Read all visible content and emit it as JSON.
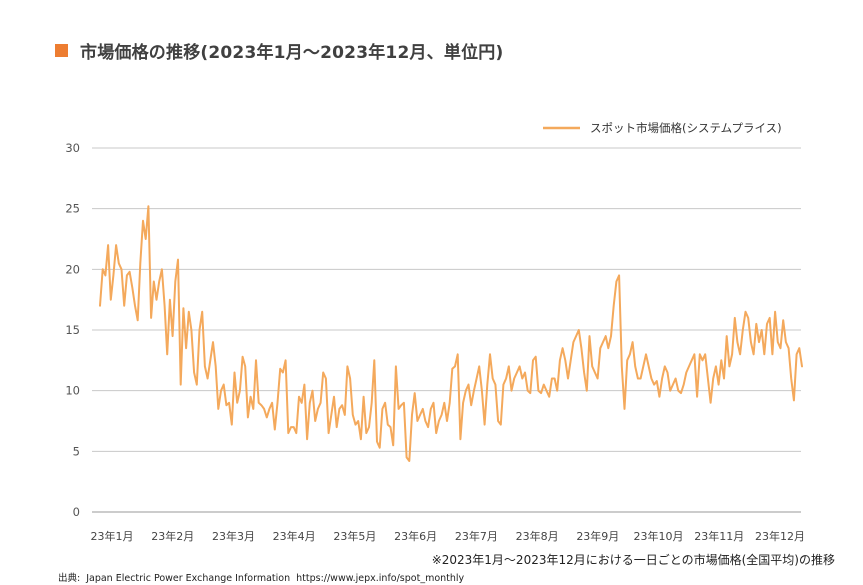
{
  "title": "市場価格の推移(2023年1月～2023年12月、単位円)",
  "note": "※2023年1月～2023年12月における一日ごとの市場価格(全国平均)の推移",
  "source": {
    "label": "出典:",
    "org": "Japan Electric Power Exchange Information",
    "url": "https://www.jepx.info/spot_monthly"
  },
  "chart_data": {
    "type": "line",
    "title": "市場価格の推移(2023年1月～2023年12月、単位円)",
    "xlabel": "",
    "ylabel": "",
    "ylim": [
      0,
      30
    ],
    "yticks": [
      0,
      5,
      10,
      15,
      20,
      25,
      30
    ],
    "grid": true,
    "legend_position": "top-right",
    "color": "#f4a95c",
    "x_tick_labels": [
      "23年1月",
      "23年2月",
      "23年3月",
      "23年4月",
      "23年5月",
      "23年6月",
      "23年7月",
      "23年8月",
      "23年9月",
      "23年10月",
      "23年11月",
      "23年12月"
    ],
    "series": [
      {
        "name": "スポット市場価格(システムプライス)",
        "values": [
          17.0,
          20.0,
          19.5,
          22.0,
          17.5,
          19.5,
          22.0,
          20.5,
          20.0,
          17.0,
          19.5,
          19.8,
          18.5,
          17.0,
          15.8,
          20.5,
          24.0,
          22.5,
          25.2,
          16.0,
          19.0,
          17.5,
          19.0,
          20.0,
          17.0,
          13.0,
          17.5,
          14.5,
          19.0,
          20.8,
          10.5,
          16.8,
          13.5,
          16.5,
          15.0,
          11.5,
          10.5,
          15.0,
          16.5,
          12.0,
          11.0,
          12.5,
          14.0,
          12.0,
          8.5,
          10.0,
          10.5,
          8.8,
          9.0,
          7.2,
          11.5,
          9.0,
          10.0,
          12.8,
          12.0,
          7.8,
          9.5,
          8.5,
          12.5,
          9.0,
          8.8,
          8.5,
          7.8,
          8.5,
          9.0,
          6.8,
          9.0,
          11.8,
          11.5,
          12.5,
          6.5,
          7.0,
          7.0,
          6.5,
          9.5,
          9.0,
          10.5,
          6.0,
          9.0,
          10.0,
          7.5,
          8.5,
          9.0,
          11.5,
          11.0,
          6.5,
          8.0,
          9.5,
          7.0,
          8.5,
          8.8,
          8.0,
          12.0,
          11.0,
          8.0,
          7.2,
          7.5,
          6.0,
          9.5,
          6.5,
          7.0,
          9.0,
          12.5,
          5.8,
          5.3,
          8.5,
          9.0,
          7.2,
          7.0,
          5.5,
          12.0,
          8.5,
          8.8,
          9.0,
          4.5,
          4.2,
          8.0,
          9.8,
          7.5,
          8.0,
          8.5,
          7.5,
          7.0,
          8.5,
          9.0,
          6.5,
          7.5,
          8.0,
          9.0,
          7.5,
          9.0,
          11.8,
          12.0,
          13.0,
          6.0,
          9.0,
          10.0,
          10.5,
          8.8,
          10.0,
          11.0,
          12.0,
          10.0,
          7.2,
          10.5,
          13.0,
          11.0,
          10.5,
          7.5,
          7.2,
          10.5,
          11.0,
          12.0,
          10.0,
          11.0,
          11.5,
          12.0,
          11.0,
          11.5,
          10.0,
          9.8,
          12.5,
          12.8,
          10.0,
          9.8,
          10.5,
          10.0,
          9.5,
          11.0,
          11.0,
          10.0,
          12.5,
          13.5,
          12.5,
          11.0,
          12.5,
          14.0,
          14.5,
          15.0,
          13.5,
          11.5,
          10.0,
          14.5,
          12.0,
          11.5,
          11.0,
          13.5,
          14.0,
          14.5,
          13.5,
          14.5,
          17.0,
          19.0,
          19.5,
          12.0,
          8.5,
          12.5,
          13.0,
          14.0,
          12.0,
          11.0,
          11.0,
          12.0,
          13.0,
          12.0,
          11.0,
          10.5,
          10.8,
          9.5,
          11.0,
          12.0,
          11.5,
          10.0,
          10.5,
          11.0,
          10.0,
          9.8,
          10.5,
          11.5,
          12.0,
          12.5,
          13.0,
          9.5,
          13.0,
          12.5,
          13.0,
          11.0,
          9.0,
          11.0,
          12.0,
          10.5,
          12.5,
          11.0,
          14.5,
          12.0,
          13.0,
          16.0,
          14.0,
          13.0,
          15.0,
          16.5,
          16.0,
          14.0,
          13.0,
          15.5,
          14.0,
          15.0,
          13.0,
          15.5,
          16.0,
          13.0,
          16.5,
          14.0,
          13.5,
          15.8,
          14.0,
          13.5,
          11.0,
          9.2,
          13.0,
          13.5,
          12.0
        ]
      }
    ]
  }
}
